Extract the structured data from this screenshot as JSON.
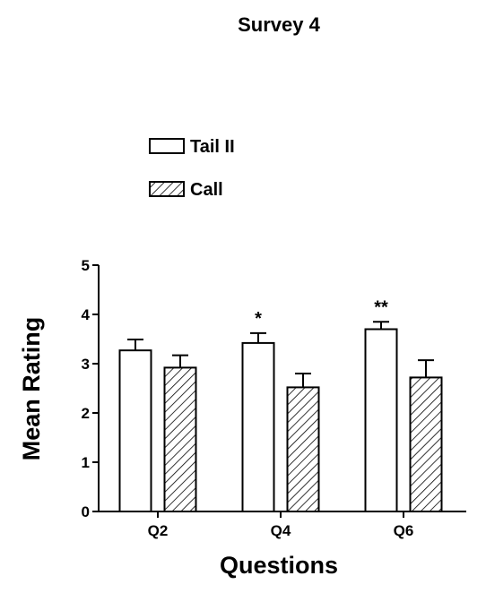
{
  "chart_data": {
    "type": "bar",
    "title": "Survey 4",
    "xlabel": "Questions",
    "ylabel": "Mean Rating",
    "categories": [
      "Q2",
      "Q4",
      "Q6"
    ],
    "ylim": [
      0,
      5
    ],
    "yticks": [
      "0",
      "1",
      "2",
      "3",
      "4",
      "5"
    ],
    "series": [
      {
        "name": "Tail II",
        "pattern": "solid-white",
        "values": [
          3.27,
          3.42,
          3.7
        ],
        "errors": [
          0.22,
          0.2,
          0.15
        ]
      },
      {
        "name": "Call",
        "pattern": "diagonal-hatch",
        "values": [
          2.92,
          2.52,
          2.72
        ],
        "errors": [
          0.25,
          0.28,
          0.35
        ]
      }
    ],
    "annotations": [
      {
        "category": "Q4",
        "series": "Tail II",
        "text": "*"
      },
      {
        "category": "Q6",
        "series": "Tail II",
        "text": "**"
      }
    ],
    "legend_position": "top-left",
    "grid": false,
    "colors": {
      "bar_fill": "#ffffff",
      "stroke": "#000000"
    }
  }
}
